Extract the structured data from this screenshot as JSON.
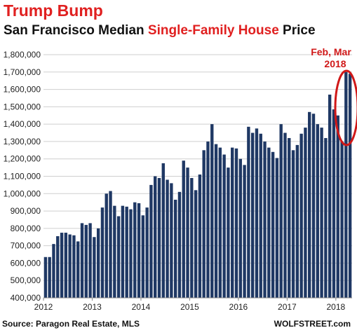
{
  "title": "Trump Bump",
  "subtitle": {
    "part1": "San Francisco Median ",
    "highlight": "Single-Family House",
    "part2": " Price"
  },
  "source": "Source: Paragon Real Estate, MLS",
  "brand": "WOLFSTREET.com",
  "annotation": {
    "line1": "Feb, Mar",
    "line2": "2018"
  },
  "colors": {
    "bar": "#1f3864",
    "accent": "#e02020",
    "grid": "#cfcfcf"
  },
  "chart_data": {
    "type": "bar",
    "ylim": [
      400000,
      1800000
    ],
    "yticks": [
      400000,
      500000,
      600000,
      700000,
      800000,
      900000,
      1000000,
      1100000,
      1200000,
      1300000,
      1400000,
      1500000,
      1600000,
      1700000,
      1800000
    ],
    "ytick_labels": [
      "400,000",
      "500,000",
      "600,000",
      "700,000",
      "800,000",
      "900,000",
      "1,000,000",
      "1,100,000",
      "1,200,000",
      "1,300,000",
      "1,400,000",
      "1,500,000",
      "1,600,000",
      "1,700,000",
      "1,800,000"
    ],
    "xtick_labels": [
      "2012",
      "2013",
      "2014",
      "2015",
      "2016",
      "2017",
      "2018"
    ],
    "grid": true,
    "series": [
      {
        "values": [
          635000,
          635000,
          710000,
          755000,
          775000,
          775000,
          765000,
          760000,
          725000,
          830000,
          820000,
          830000,
          750000,
          800000,
          920000,
          1000000,
          1015000,
          930000,
          870000,
          930000,
          925000,
          910000,
          950000,
          945000,
          875000,
          920000,
          1050000,
          1100000,
          1090000,
          1175000,
          1080000,
          1060000,
          965000,
          1010000,
          1190000,
          1150000,
          1090000,
          1020000,
          1110000,
          1250000,
          1300000,
          1400000,
          1285000,
          1265000,
          1225000,
          1150000,
          1265000,
          1260000,
          1200000,
          1165000,
          1385000,
          1350000,
          1375000,
          1345000,
          1300000,
          1265000,
          1240000,
          1205000,
          1400000,
          1350000,
          1320000,
          1250000,
          1280000,
          1345000,
          1380000,
          1470000,
          1460000,
          1400000,
          1380000,
          1320000,
          1570000,
          1485000,
          1450000,
          1300000,
          1700000,
          1690000
        ]
      }
    ]
  }
}
